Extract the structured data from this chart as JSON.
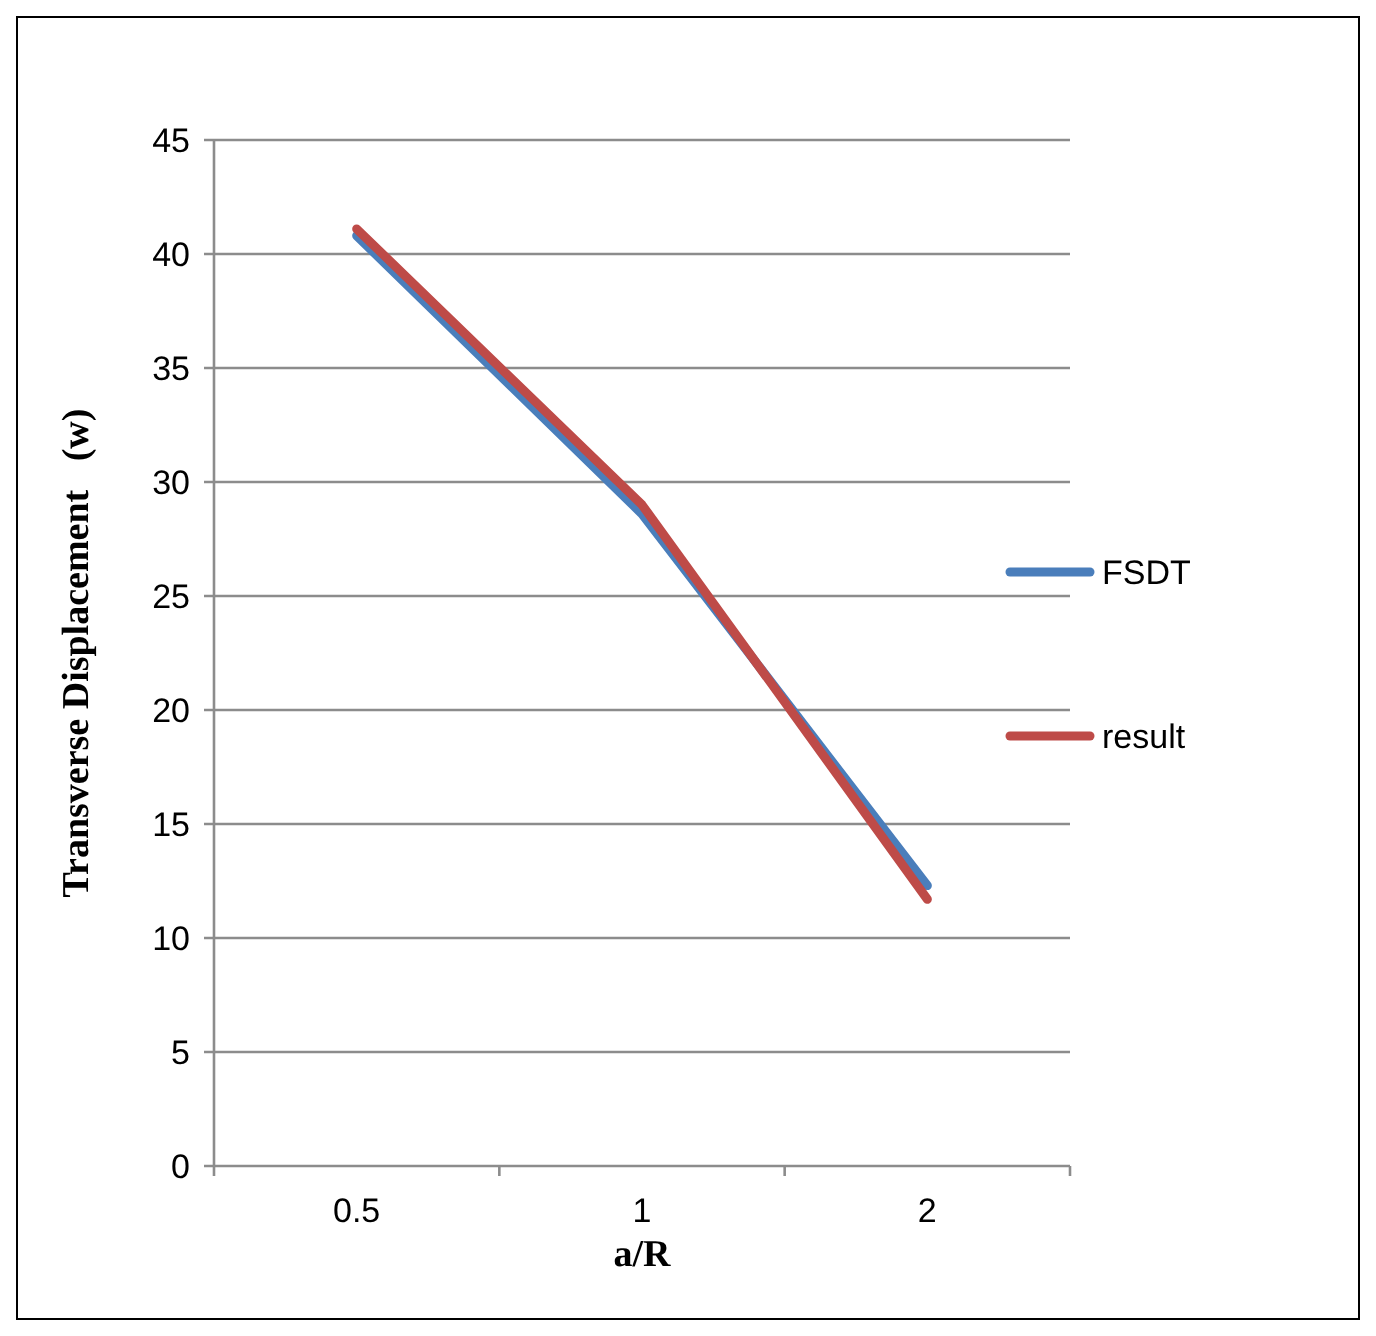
{
  "chart_data": {
    "type": "line",
    "xlabel": "a/R",
    "ylabel": "Transverse Displacement   (w)",
    "categories": [
      "0.5",
      "1",
      "2"
    ],
    "series": [
      {
        "name": "FSDT",
        "color": "#4a7ebb",
        "values": [
          40.8,
          28.6,
          12.3
        ]
      },
      {
        "name": "result",
        "color": "#be4b48",
        "values": [
          41.1,
          29.0,
          11.7
        ]
      }
    ],
    "ylim": [
      0,
      45
    ],
    "yticks": [
      0,
      5,
      10,
      15,
      20,
      25,
      30,
      35,
      40,
      45
    ],
    "grid": "y",
    "legend": "right",
    "marker": "none",
    "line_style": "solid"
  }
}
